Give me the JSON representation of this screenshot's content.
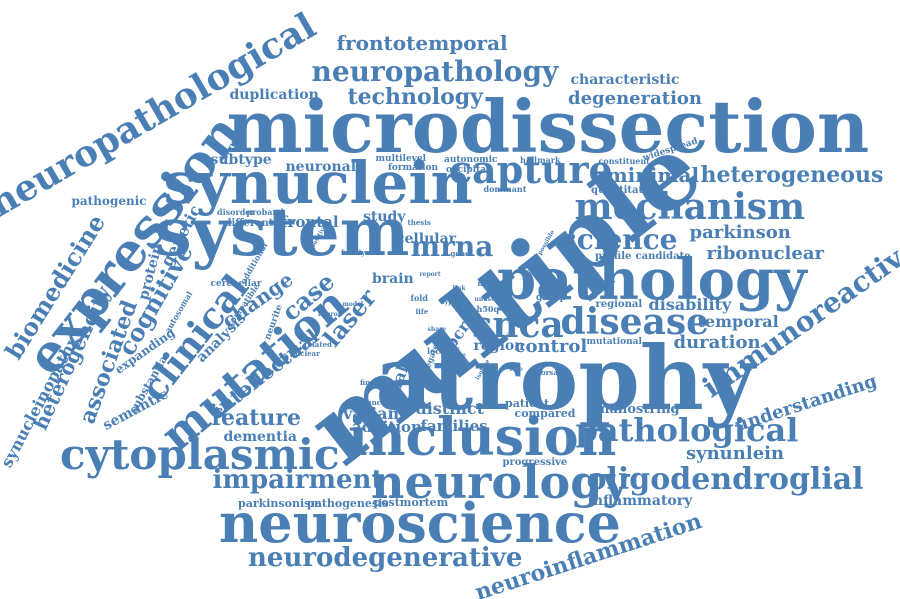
{
  "word_cloud": {
    "color": "#4a7fb5",
    "background": "#ffffff",
    "words": [
      {
        "text": "multiple",
        "weight": 10,
        "orientation": "rotated"
      },
      {
        "text": "atrophy",
        "weight": 9.5,
        "orientation": "horizontal"
      },
      {
        "text": "microdissection",
        "weight": 9.5,
        "orientation": "horizontal"
      },
      {
        "text": "system",
        "weight": 8.5,
        "orientation": "horizontal"
      },
      {
        "text": "synuclein",
        "weight": 8,
        "orientation": "horizontal"
      },
      {
        "text": "neuroscience",
        "weight": 8,
        "orientation": "horizontal"
      },
      {
        "text": "inclusion",
        "weight": 7.5,
        "orientation": "horizontal"
      },
      {
        "text": "pathology",
        "weight": 7.5,
        "orientation": "horizontal"
      },
      {
        "text": "expression",
        "weight": 7,
        "orientation": "rotated"
      },
      {
        "text": "neurology",
        "weight": 7,
        "orientation": "horizontal"
      },
      {
        "text": "cytoplasmic",
        "weight": 7,
        "orientation": "horizontal"
      },
      {
        "text": "mutation",
        "weight": 6.5,
        "orientation": "rotated"
      },
      {
        "text": "neuropathological",
        "weight": 6,
        "orientation": "rotated"
      },
      {
        "text": "capture",
        "weight": 6,
        "orientation": "horizontal"
      },
      {
        "text": "mechanism",
        "weight": 5.5,
        "orientation": "horizontal"
      },
      {
        "text": "snca",
        "weight": 5.5,
        "orientation": "horizontal"
      },
      {
        "text": "disease",
        "weight": 5.5,
        "orientation": "horizontal"
      },
      {
        "text": "clinical",
        "weight": 5,
        "orientation": "rotated"
      },
      {
        "text": "pathological",
        "weight": 5,
        "orientation": "horizontal"
      },
      {
        "text": "oligodendroglial",
        "weight": 5,
        "orientation": "horizontal"
      },
      {
        "text": "neuropathology",
        "weight": 4.5,
        "orientation": "horizontal"
      },
      {
        "text": "immunoreactive",
        "weight": 4.5,
        "orientation": "rotated"
      },
      {
        "text": "science",
        "weight": 4.5,
        "orientation": "horizontal"
      },
      {
        "text": "impairment",
        "weight": 4.5,
        "orientation": "horizontal"
      },
      {
        "text": "neurodegenerative",
        "weight": 4.5,
        "orientation": "horizontal"
      },
      {
        "text": "neuroinflammation",
        "weight": 4,
        "orientation": "rotated"
      },
      {
        "text": "biomedicine",
        "weight": 4,
        "orientation": "rotated"
      },
      {
        "text": "heterogeneous",
        "weight": 4,
        "orientation": "horizontal"
      },
      {
        "text": "mrna",
        "weight": 4,
        "orientation": "horizontal"
      },
      {
        "text": "laser",
        "weight": 4,
        "orientation": "rotated"
      },
      {
        "text": "case",
        "weight": 4,
        "orientation": "rotated"
      },
      {
        "text": "cognitive",
        "weight": 4,
        "orientation": "rotated"
      },
      {
        "text": "associated",
        "weight": 4,
        "orientation": "rotated"
      },
      {
        "text": "frontotemporal",
        "weight": 3.5,
        "orientation": "horizontal"
      },
      {
        "text": "technology",
        "weight": 3.5,
        "orientation": "horizontal"
      },
      {
        "text": "change",
        "weight": 3.5,
        "orientation": "rotated"
      },
      {
        "text": "intellectual",
        "weight": 3.5,
        "orientation": "rotated"
      },
      {
        "text": "feature",
        "weight": 3.5,
        "orientation": "horizontal"
      },
      {
        "text": "heterogeneity",
        "weight": 3.5,
        "orientation": "rotated"
      },
      {
        "text": "degeneration",
        "weight": 3,
        "orientation": "horizontal"
      },
      {
        "text": "minimal",
        "weight": 3,
        "orientation": "horizontal"
      },
      {
        "text": "parkinson",
        "weight": 3,
        "orientation": "horizontal"
      },
      {
        "text": "ribonuclear",
        "weight": 3,
        "orientation": "horizontal"
      },
      {
        "text": "duration",
        "weight": 3,
        "orientation": "horizontal"
      },
      {
        "text": "control",
        "weight": 3,
        "orientation": "horizontal"
      },
      {
        "text": "synunlein",
        "weight": 3,
        "orientation": "horizontal"
      },
      {
        "text": "understanding",
        "weight": 3,
        "orientation": "rotated"
      },
      {
        "text": "disability",
        "weight": 3,
        "orientation": "horizontal"
      },
      {
        "text": "temporal",
        "weight": 3,
        "orientation": "horizontal"
      },
      {
        "text": "distinct",
        "weight": 3,
        "orientation": "horizontal"
      },
      {
        "text": "frontal",
        "weight": 3,
        "orientation": "horizontal"
      },
      {
        "text": "variant",
        "weight": 2.5,
        "orientation": "horizontal"
      },
      {
        "text": "addition",
        "weight": 2.5,
        "orientation": "horizontal"
      },
      {
        "text": "families",
        "weight": 2.5,
        "orientation": "horizontal"
      },
      {
        "text": "dementia",
        "weight": 2.5,
        "orientation": "horizontal"
      },
      {
        "text": "duplication",
        "weight": 2.5,
        "orientation": "horizontal"
      },
      {
        "text": "subtype",
        "weight": 2.5,
        "orientation": "horizontal"
      },
      {
        "text": "neuronal",
        "weight": 2.5,
        "orientation": "horizontal"
      },
      {
        "text": "characteristic",
        "weight": 2.5,
        "orientation": "horizontal"
      },
      {
        "text": "study",
        "weight": 2.5,
        "orientation": "horizontal"
      },
      {
        "text": "cellular",
        "weight": 2.5,
        "orientation": "horizontal"
      },
      {
        "text": "brain",
        "weight": 2.5,
        "orientation": "horizontal"
      },
      {
        "text": "region",
        "weight": 2.5,
        "orientation": "horizontal"
      },
      {
        "text": "genetic",
        "weight": 2.5,
        "orientation": "rotated"
      },
      {
        "text": "protein",
        "weight": 2.5,
        "orientation": "rotated"
      },
      {
        "text": "glial",
        "weight": 2.5,
        "orientation": "rotated"
      },
      {
        "text": "qpcr",
        "weight": 2.5,
        "orientation": "rotated"
      },
      {
        "text": "inflammatory",
        "weight": 2.5,
        "orientation": "horizontal"
      },
      {
        "text": "analysis",
        "weight": 2.5,
        "orientation": "rotated"
      },
      {
        "text": "synucleinopathy",
        "weight": 2.5,
        "orientation": "rotated"
      },
      {
        "text": "semantic",
        "weight": 2.5,
        "orientation": "rotated"
      },
      {
        "text": "pathogenic",
        "weight": 2,
        "orientation": "horizontal"
      },
      {
        "text": "nanostring",
        "weight": 2,
        "orientation": "horizontal"
      },
      {
        "text": "expanding",
        "weight": 2,
        "orientation": "rotated"
      },
      {
        "text": "substantia",
        "weight": 2,
        "orientation": "rotated"
      },
      {
        "text": "progressive",
        "weight": 2,
        "orientation": "horizontal"
      },
      {
        "text": "parkinsonism",
        "weight": 2,
        "orientation": "horizontal"
      },
      {
        "text": "pathogenesis",
        "weight": 2,
        "orientation": "horizontal"
      },
      {
        "text": "postmortem",
        "weight": 2,
        "orientation": "horizontal"
      },
      {
        "text": "compared",
        "weight": 2,
        "orientation": "horizontal"
      },
      {
        "text": "patient",
        "weight": 2,
        "orientation": "horizontal"
      },
      {
        "text": "quantitative",
        "weight": 1.5,
        "orientation": "horizontal"
      },
      {
        "text": "candidate",
        "weight": 1.5,
        "orientation": "horizontal"
      },
      {
        "text": "profile",
        "weight": 1.5,
        "orientation": "horizontal"
      },
      {
        "text": "regional",
        "weight": 1.5,
        "orientation": "horizontal"
      },
      {
        "text": "group",
        "weight": 1.5,
        "orientation": "horizontal"
      },
      {
        "text": "mutational",
        "weight": 1.5,
        "orientation": "horizontal"
      },
      {
        "text": "multilevel",
        "weight": 1.5,
        "orientation": "horizontal"
      },
      {
        "text": "autonomic",
        "weight": 1.5,
        "orientation": "horizontal"
      },
      {
        "text": "formation",
        "weight": 1.5,
        "orientation": "horizontal"
      },
      {
        "text": "occipital",
        "weight": 1.5,
        "orientation": "horizontal"
      },
      {
        "text": "hallmark",
        "weight": 1.5,
        "orientation": "horizontal"
      },
      {
        "text": "constituent",
        "weight": 1.5,
        "orientation": "horizontal"
      },
      {
        "text": "widespread",
        "weight": 1.5,
        "orientation": "rotated"
      },
      {
        "text": "dominant",
        "weight": 1.5,
        "orientation": "horizontal"
      },
      {
        "text": "different",
        "weight": 1.5,
        "orientation": "horizontal"
      },
      {
        "text": "disorder",
        "weight": 1.5,
        "orientation": "horizontal"
      },
      {
        "text": "proband",
        "weight": 1.5,
        "orientation": "horizontal"
      },
      {
        "text": "coeruleus",
        "weight": 1.5,
        "orientation": "rotated"
      },
      {
        "text": "autosomal",
        "weight": 1.5,
        "orientation": "rotated"
      },
      {
        "text": "cerebellar",
        "weight": 1.5,
        "orientation": "horizontal"
      },
      {
        "text": "additional",
        "weight": 1.5,
        "orientation": "rotated"
      },
      {
        "text": "compatible",
        "weight": 1.5,
        "orientation": "rotated"
      },
      {
        "text": "neurite",
        "weight": 1.5,
        "orientation": "rotated"
      },
      {
        "text": "family",
        "weight": 1.2,
        "orientation": "horizontal"
      },
      {
        "text": "thesis",
        "weight": 1.2,
        "orientation": "horizontal"
      },
      {
        "text": "gene",
        "weight": 1.2,
        "orientation": "horizontal"
      },
      {
        "text": "fold",
        "weight": 1.2,
        "orientation": "horizontal"
      },
      {
        "text": "h50q",
        "weight": 1.2,
        "orientation": "horizontal"
      },
      {
        "text": "locus",
        "weight": 1.2,
        "orientation": "horizontal"
      },
      {
        "text": "finding",
        "weight": 1.2,
        "orientation": "horizontal"
      },
      {
        "text": "function",
        "weight": 1.2,
        "orientation": "horizontal"
      },
      {
        "text": "life",
        "weight": 1.2,
        "orientation": "horizontal"
      },
      {
        "text": "novel",
        "weight": 1.2,
        "orientation": "horizontal"
      },
      {
        "text": "unusual",
        "weight": 1.2,
        "orientation": "horizontal"
      },
      {
        "text": "dorsal",
        "weight": 1.2,
        "orientation": "horizontal"
      },
      {
        "text": "related",
        "weight": 1.2,
        "orientation": "horizontal"
      },
      {
        "text": "nuclear",
        "weight": 1.2,
        "orientation": "horizontal"
      },
      {
        "text": "report",
        "weight": 1.2,
        "orientation": "horizontal"
      },
      {
        "text": "link",
        "weight": 1.2,
        "orientation": "horizontal"
      },
      {
        "text": "type",
        "weight": 1.2,
        "orientation": "horizontal"
      },
      {
        "text": "share",
        "weight": 1.2,
        "orientation": "horizontal"
      },
      {
        "text": "model",
        "weight": 1.2,
        "orientation": "horizontal"
      },
      {
        "text": "neuron",
        "weight": 1.2,
        "orientation": "horizontal"
      },
      {
        "text": "segregate",
        "weight": 1.2,
        "orientation": "rotated"
      },
      {
        "text": "positive",
        "weight": 1.2,
        "orientation": "rotated"
      },
      {
        "text": "possible",
        "weight": 1.2,
        "orientation": "rotated"
      },
      {
        "text": "putative",
        "weight": 1.2,
        "orientation": "rotated"
      },
      {
        "text": "isolate",
        "weight": 1.2,
        "orientation": "rotated"
      },
      {
        "text": "tissue",
        "weight": 1.2,
        "orientation": "rotated"
      },
      {
        "text": "role",
        "weight": 1.2,
        "orientation": "horizontal"
      }
    ]
  }
}
